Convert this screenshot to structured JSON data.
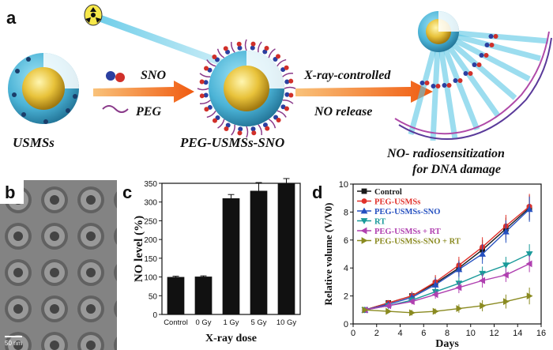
{
  "panel_a": {
    "letter": "a",
    "label_usmss": "USMSs",
    "label_sno": "SNO",
    "label_peg": "PEG",
    "label_peg_usmss_sno": "PEG-USMSs-SNO",
    "label_xray_controlled": "X-ray-controlled",
    "label_no_release": "NO release",
    "label_radiosens_1": "NO- radiosensitization",
    "label_radiosens_2": "for DNA damage"
  },
  "panel_b": {
    "letter": "b",
    "scale_bar": "50 nm"
  },
  "colors": {
    "shell": "#4bb3d6",
    "core": "#e8c23a",
    "arrow": "#f07a1a",
    "beam": "#5cc7e6",
    "peg": "#8a3a8a"
  },
  "chart_data": [
    {
      "panel": "c",
      "type": "bar",
      "xlabel": "X-ray dose",
      "ylabel": "NO level (%)",
      "categories": [
        "Control",
        "0 Gy",
        "1 Gy",
        "5 Gy",
        "10 Gy"
      ],
      "values": [
        100,
        101,
        310,
        330,
        360
      ],
      "errors": [
        2,
        2,
        10,
        22,
        10
      ],
      "ylim": [
        0,
        350
      ],
      "yticks": [
        0,
        50,
        100,
        150,
        200,
        250,
        300,
        350
      ],
      "color": "#111111"
    },
    {
      "panel": "d",
      "type": "line",
      "xlabel": "Days",
      "ylabel": "Relative volume (V/V0)",
      "xlim": [
        0,
        16
      ],
      "ylim": [
        0,
        10
      ],
      "xticks": [
        0,
        2,
        4,
        6,
        8,
        10,
        12,
        14,
        16
      ],
      "yticks": [
        0,
        2,
        4,
        6,
        8,
        10
      ],
      "x": [
        1,
        3,
        5,
        7,
        9,
        11,
        13,
        15
      ],
      "legend_position": "top-left",
      "series": [
        {
          "name": "Control",
          "color": "#1a1a1a",
          "marker": "square",
          "values": [
            1.0,
            1.5,
            2.0,
            2.9,
            4.0,
            5.3,
            6.8,
            8.3
          ],
          "errors": [
            0.1,
            0.2,
            0.3,
            0.5,
            0.6,
            0.7,
            0.8,
            0.9
          ]
        },
        {
          "name": "PEG-USMSs",
          "color": "#e0302a",
          "marker": "circle",
          "values": [
            1.0,
            1.5,
            2.0,
            3.0,
            4.2,
            5.5,
            7.0,
            8.4
          ],
          "errors": [
            0.1,
            0.2,
            0.3,
            0.5,
            0.6,
            0.7,
            0.8,
            0.9
          ]
        },
        {
          "name": "PEG-USMSs-SNO",
          "color": "#2550c0",
          "marker": "triangle-up",
          "values": [
            1.0,
            1.4,
            1.9,
            2.8,
            3.9,
            5.0,
            6.6,
            8.2
          ],
          "errors": [
            0.1,
            0.2,
            0.3,
            0.5,
            0.6,
            0.7,
            0.8,
            0.9
          ]
        },
        {
          "name": "RT",
          "color": "#1a9a9a",
          "marker": "triangle-down",
          "values": [
            1.0,
            1.3,
            1.7,
            2.3,
            2.9,
            3.6,
            4.2,
            5.0
          ],
          "errors": [
            0.1,
            0.2,
            0.2,
            0.3,
            0.4,
            0.5,
            0.6,
            0.7
          ]
        },
        {
          "name": "PEG-USMSs + RT",
          "color": "#b040b0",
          "marker": "triangle-left",
          "values": [
            1.0,
            1.3,
            1.6,
            2.1,
            2.6,
            3.1,
            3.5,
            4.3
          ],
          "errors": [
            0.1,
            0.2,
            0.2,
            0.3,
            0.4,
            0.5,
            0.5,
            0.6
          ]
        },
        {
          "name": "PEG-USMSs-SNO + RT",
          "color": "#8a8a20",
          "marker": "triangle-right",
          "values": [
            1.0,
            0.9,
            0.8,
            0.9,
            1.1,
            1.3,
            1.6,
            2.0
          ],
          "errors": [
            0.1,
            0.1,
            0.2,
            0.2,
            0.3,
            0.4,
            0.5,
            0.6
          ]
        }
      ]
    }
  ]
}
